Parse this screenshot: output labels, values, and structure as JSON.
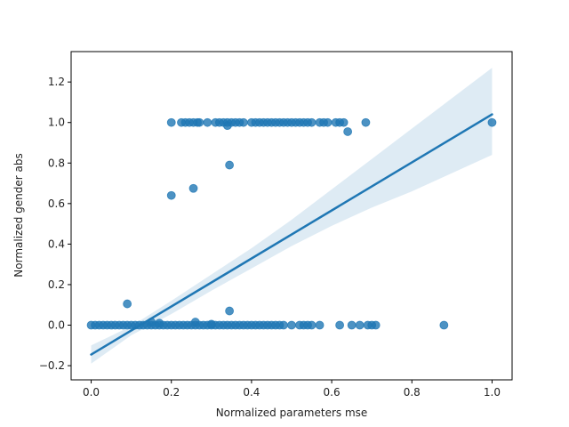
{
  "chart_data": {
    "type": "scatter",
    "xlabel": "Normalized parameters mse",
    "ylabel": "Normalized gender abs",
    "xlim": [
      -0.05,
      1.05
    ],
    "ylim": [
      -0.27,
      1.35
    ],
    "xticks": [
      0.0,
      0.2,
      0.4,
      0.6,
      0.8,
      1.0
    ],
    "xtick_labels": [
      "0.0",
      "0.2",
      "0.4",
      "0.6",
      "0.8",
      "1.0"
    ],
    "yticks": [
      -0.2,
      0.0,
      0.2,
      0.4,
      0.6,
      0.8,
      1.0,
      1.2
    ],
    "ytick_labels": [
      "−0.2",
      "0.0",
      "0.2",
      "0.4",
      "0.6",
      "0.8",
      "1.0",
      "1.2"
    ],
    "grid": false,
    "colors": {
      "points": "#1f77b4",
      "line": "#1f77b4",
      "band": "#1f77b4",
      "axes": "#000000"
    },
    "regression": {
      "x": [
        0.0,
        1.0
      ],
      "y": [
        -0.145,
        1.04
      ]
    },
    "confidence_band": {
      "x": [
        0.0,
        0.1,
        0.2,
        0.3,
        0.4,
        0.5,
        0.6,
        0.7,
        0.8,
        0.9,
        1.0
      ],
      "upper": [
        -0.1,
        -0.005,
        0.12,
        0.25,
        0.38,
        0.52,
        0.67,
        0.82,
        0.97,
        1.12,
        1.27
      ],
      "lower": [
        -0.19,
        -0.05,
        0.055,
        0.17,
        0.28,
        0.39,
        0.49,
        0.58,
        0.66,
        0.75,
        0.84
      ]
    },
    "points": [
      [
        0.0,
        0.0
      ],
      [
        0.01,
        0.0
      ],
      [
        0.02,
        0.0
      ],
      [
        0.03,
        0.0
      ],
      [
        0.04,
        0.0
      ],
      [
        0.05,
        0.0
      ],
      [
        0.06,
        0.0
      ],
      [
        0.07,
        0.0
      ],
      [
        0.08,
        0.0
      ],
      [
        0.09,
        0.0
      ],
      [
        0.1,
        0.0
      ],
      [
        0.11,
        0.0
      ],
      [
        0.12,
        0.0
      ],
      [
        0.13,
        0.0
      ],
      [
        0.14,
        0.0
      ],
      [
        0.15,
        0.0
      ],
      [
        0.16,
        0.0
      ],
      [
        0.17,
        0.0
      ],
      [
        0.18,
        0.0
      ],
      [
        0.19,
        0.0
      ],
      [
        0.2,
        0.0
      ],
      [
        0.21,
        0.0
      ],
      [
        0.22,
        0.0
      ],
      [
        0.23,
        0.0
      ],
      [
        0.24,
        0.0
      ],
      [
        0.25,
        0.0
      ],
      [
        0.26,
        0.0
      ],
      [
        0.27,
        0.0
      ],
      [
        0.28,
        0.0
      ],
      [
        0.29,
        0.0
      ],
      [
        0.3,
        0.0
      ],
      [
        0.31,
        0.0
      ],
      [
        0.32,
        0.0
      ],
      [
        0.33,
        0.0
      ],
      [
        0.34,
        0.0
      ],
      [
        0.35,
        0.0
      ],
      [
        0.36,
        0.0
      ],
      [
        0.37,
        0.0
      ],
      [
        0.38,
        0.0
      ],
      [
        0.39,
        0.0
      ],
      [
        0.4,
        0.0
      ],
      [
        0.41,
        0.0
      ],
      [
        0.42,
        0.0
      ],
      [
        0.43,
        0.0
      ],
      [
        0.44,
        0.0
      ],
      [
        0.45,
        0.0
      ],
      [
        0.46,
        0.0
      ],
      [
        0.47,
        0.0
      ],
      [
        0.48,
        0.0
      ],
      [
        0.5,
        0.0
      ],
      [
        0.52,
        0.0
      ],
      [
        0.53,
        0.0
      ],
      [
        0.54,
        0.0
      ],
      [
        0.55,
        0.0
      ],
      [
        0.57,
        0.0
      ],
      [
        0.62,
        0.0
      ],
      [
        0.65,
        0.0
      ],
      [
        0.67,
        0.0
      ],
      [
        0.69,
        0.0
      ],
      [
        0.7,
        0.0
      ],
      [
        0.71,
        0.0
      ],
      [
        0.88,
        0.0
      ],
      [
        0.15,
        0.015
      ],
      [
        0.17,
        0.01
      ],
      [
        0.26,
        0.015
      ],
      [
        0.3,
        0.005
      ],
      [
        0.09,
        0.105
      ],
      [
        0.345,
        0.07
      ],
      [
        0.2,
        0.64
      ],
      [
        0.255,
        0.675
      ],
      [
        0.345,
        0.79
      ],
      [
        0.2,
        1.0
      ],
      [
        0.225,
        1.0
      ],
      [
        0.235,
        1.0
      ],
      [
        0.245,
        1.0
      ],
      [
        0.255,
        1.0
      ],
      [
        0.265,
        1.0
      ],
      [
        0.27,
        1.0
      ],
      [
        0.29,
        1.0
      ],
      [
        0.31,
        1.0
      ],
      [
        0.32,
        1.0
      ],
      [
        0.33,
        1.0
      ],
      [
        0.34,
        1.0
      ],
      [
        0.35,
        1.0
      ],
      [
        0.36,
        1.0
      ],
      [
        0.37,
        1.0
      ],
      [
        0.38,
        1.0
      ],
      [
        0.4,
        1.0
      ],
      [
        0.41,
        1.0
      ],
      [
        0.42,
        1.0
      ],
      [
        0.43,
        1.0
      ],
      [
        0.44,
        1.0
      ],
      [
        0.45,
        1.0
      ],
      [
        0.46,
        1.0
      ],
      [
        0.47,
        1.0
      ],
      [
        0.48,
        1.0
      ],
      [
        0.49,
        1.0
      ],
      [
        0.5,
        1.0
      ],
      [
        0.51,
        1.0
      ],
      [
        0.52,
        1.0
      ],
      [
        0.53,
        1.0
      ],
      [
        0.54,
        1.0
      ],
      [
        0.55,
        1.0
      ],
      [
        0.57,
        1.0
      ],
      [
        0.58,
        1.0
      ],
      [
        0.59,
        1.0
      ],
      [
        0.61,
        1.0
      ],
      [
        0.62,
        1.0
      ],
      [
        0.63,
        1.0
      ],
      [
        0.685,
        1.0
      ],
      [
        1.0,
        1.0
      ],
      [
        0.34,
        0.985
      ],
      [
        0.64,
        0.955
      ]
    ]
  }
}
